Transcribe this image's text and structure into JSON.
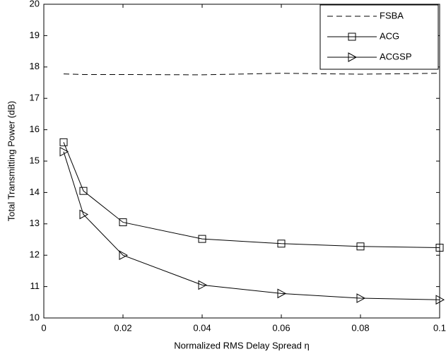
{
  "chart_data": {
    "type": "line",
    "x_label": "Normalized RMS Delay Spread η",
    "y_label": "Total Transmitting Power (dB)",
    "x": [
      0.005,
      0.01,
      0.02,
      0.04,
      0.06,
      0.08,
      0.1
    ],
    "series": [
      {
        "name": "FSBA",
        "color": "#000000",
        "dash": "dashed",
        "marker": "none",
        "values": [
          17.78,
          17.76,
          17.76,
          17.75,
          17.8,
          17.77,
          17.8
        ]
      },
      {
        "name": "ACG",
        "color": "#000000",
        "dash": "solid",
        "marker": "square",
        "values": [
          15.6,
          14.05,
          13.05,
          12.52,
          12.37,
          12.28,
          12.24
        ]
      },
      {
        "name": "ACGSP",
        "color": "#000000",
        "dash": "solid",
        "marker": "triangle-right",
        "values": [
          15.3,
          13.3,
          12.0,
          11.05,
          10.78,
          10.63,
          10.58
        ]
      }
    ],
    "xlim": [
      0,
      0.1
    ],
    "xticks": [
      0,
      0.02,
      0.04,
      0.06,
      0.08,
      0.1
    ],
    "ylim": [
      10,
      20
    ],
    "yticks": [
      10,
      11,
      12,
      13,
      14,
      15,
      16,
      17,
      18,
      19,
      20
    ],
    "grid": false,
    "legend": "top-right"
  }
}
